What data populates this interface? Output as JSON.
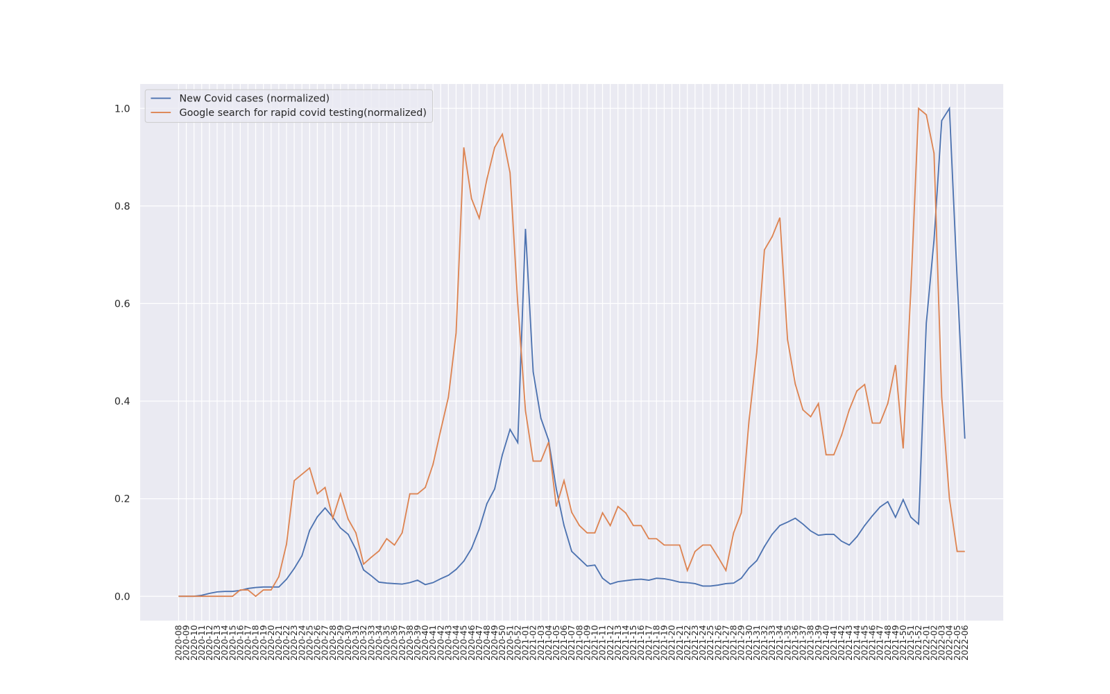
{
  "chart_data": {
    "type": "line",
    "categories": [
      "2020-08",
      "2020-09",
      "2020-10",
      "2020-11",
      "2020-12",
      "2020-13",
      "2020-14",
      "2020-15",
      "2020-16",
      "2020-17",
      "2020-18",
      "2020-19",
      "2020-20",
      "2020-21",
      "2020-22",
      "2020-23",
      "2020-24",
      "2020-25",
      "2020-26",
      "2020-27",
      "2020-28",
      "2020-29",
      "2020-30",
      "2020-31",
      "2020-32",
      "2020-33",
      "2020-34",
      "2020-35",
      "2020-36",
      "2020-37",
      "2020-38",
      "2020-39",
      "2020-40",
      "2020-41",
      "2020-42",
      "2020-43",
      "2020-44",
      "2020-45",
      "2020-46",
      "2020-47",
      "2020-48",
      "2020-49",
      "2020-50",
      "2020-51",
      "2020-52",
      "2021-01",
      "2021-02",
      "2021-03",
      "2021-04",
      "2021-05",
      "2021-06",
      "2021-07",
      "2021-08",
      "2021-09",
      "2021-10",
      "2021-11",
      "2021-12",
      "2021-13",
      "2021-14",
      "2021-15",
      "2021-16",
      "2021-17",
      "2021-18",
      "2021-19",
      "2021-20",
      "2021-21",
      "2021-22",
      "2021-23",
      "2021-24",
      "2021-25",
      "2021-26",
      "2021-27",
      "2021-28",
      "2021-29",
      "2021-30",
      "2021-31",
      "2021-32",
      "2021-33",
      "2021-34",
      "2021-35",
      "2021-36",
      "2021-37",
      "2021-38",
      "2021-39",
      "2021-40",
      "2021-41",
      "2021-42",
      "2021-43",
      "2021-44",
      "2021-45",
      "2021-46",
      "2021-47",
      "2021-48",
      "2021-49",
      "2021-50",
      "2021-51",
      "2021-52",
      "2022-01",
      "2022-02",
      "2022-03",
      "2022-04",
      "2022-05",
      "2022-06"
    ],
    "series": [
      {
        "name": "New Covid cases (normalized)",
        "color": "#4c72b0",
        "values": [
          0,
          0,
          0,
          0.002,
          0.006,
          0.009,
          0.01,
          0.01,
          0.012,
          0.016,
          0.018,
          0.019,
          0.019,
          0.019,
          0.035,
          0.057,
          0.083,
          0.135,
          0.163,
          0.181,
          0.162,
          0.14,
          0.127,
          0.096,
          0.054,
          0.042,
          0.029,
          0.027,
          0.026,
          0.025,
          0.028,
          0.033,
          0.024,
          0.028,
          0.036,
          0.043,
          0.055,
          0.072,
          0.098,
          0.138,
          0.19,
          0.22,
          0.29,
          0.342,
          0.315,
          0.753,
          0.46,
          0.365,
          0.32,
          0.22,
          0.145,
          0.092,
          0.077,
          0.062,
          0.064,
          0.037,
          0.025,
          0.03,
          0.032,
          0.034,
          0.035,
          0.033,
          0.037,
          0.036,
          0.033,
          0.029,
          0.028,
          0.026,
          0.021,
          0.021,
          0.023,
          0.026,
          0.027,
          0.037,
          0.058,
          0.073,
          0.102,
          0.127,
          0.145,
          0.152,
          0.16,
          0.148,
          0.134,
          0.125,
          0.127,
          0.127,
          0.113,
          0.105,
          0.122,
          0.145,
          0.165,
          0.183,
          0.194,
          0.162,
          0.198,
          0.162,
          0.148,
          0.56,
          0.73,
          0.975,
          1.0,
          0.65,
          0.323
        ]
      },
      {
        "name": "Google search for rapid covid testing(normalized)",
        "color": "#dd8452",
        "values": [
          0,
          0,
          0,
          0,
          0,
          0,
          0,
          0,
          0.013,
          0.013,
          0,
          0.013,
          0.013,
          0.04,
          0.107,
          0.237,
          0.25,
          0.263,
          0.21,
          0.223,
          0.16,
          0.21,
          0.158,
          0.13,
          0.066,
          0.08,
          0.093,
          0.118,
          0.105,
          0.13,
          0.21,
          0.21,
          0.223,
          0.27,
          0.34,
          0.408,
          0.54,
          0.92,
          0.815,
          0.775,
          0.855,
          0.92,
          0.947,
          0.868,
          0.6,
          0.38,
          0.277,
          0.277,
          0.316,
          0.184,
          0.237,
          0.172,
          0.145,
          0.13,
          0.13,
          0.171,
          0.145,
          0.184,
          0.171,
          0.145,
          0.145,
          0.118,
          0.118,
          0.105,
          0.105,
          0.105,
          0.053,
          0.092,
          0.105,
          0.105,
          0.08,
          0.053,
          0.13,
          0.171,
          0.36,
          0.5,
          0.71,
          0.737,
          0.776,
          0.526,
          0.435,
          0.382,
          0.368,
          0.395,
          0.29,
          0.29,
          0.33,
          0.382,
          0.421,
          0.434,
          0.355,
          0.355,
          0.395,
          0.474,
          0.303,
          0.63,
          1.0,
          0.987,
          0.908,
          0.408,
          0.2,
          0.092,
          0.092
        ]
      }
    ],
    "ylim": [
      -0.05,
      1.05
    ],
    "yticks": [
      {
        "value": 0,
        "label": "0.0"
      },
      0.2,
      0.4,
      0.6,
      0.8,
      {
        "value": 1,
        "label": "1.0"
      }
    ],
    "grid": true,
    "legend": "upper left"
  }
}
